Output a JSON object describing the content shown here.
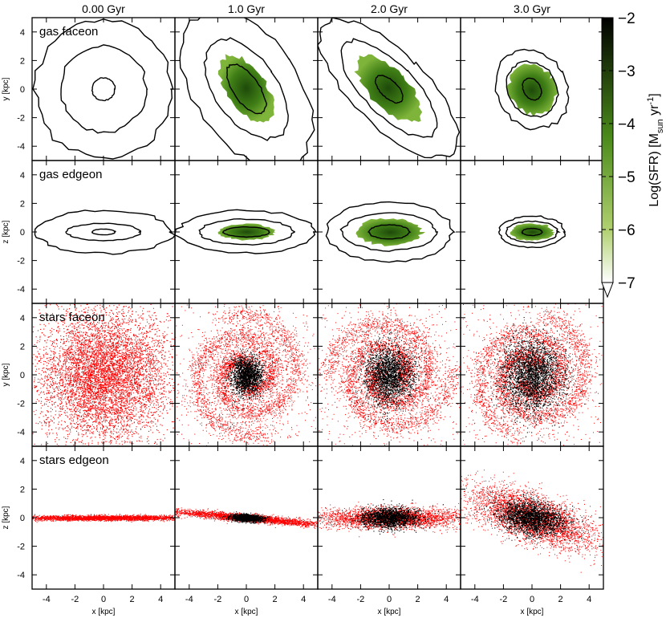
{
  "chart_data": {
    "type": "image-grid",
    "title": "",
    "time_labels": [
      "0.00 Gyr",
      "1.0 Gyr",
      "2.0 Gyr",
      "3.0 Gyr"
    ],
    "row_labels": [
      "gas faceon",
      "gas edgeon",
      "stars faceon",
      "stars edgeon"
    ],
    "ylabels": [
      "y [kpc]",
      "z [kpc]",
      "y [kpc]",
      "z [kpc]"
    ],
    "xlabel": "x [kpc]",
    "x_ticks": [
      -4,
      -2,
      0,
      2,
      4
    ],
    "y_ticks": [
      -4,
      -2,
      0,
      2,
      4
    ],
    "xlim": [
      -5,
      5
    ],
    "ylim": [
      -5,
      5
    ],
    "colorbar": {
      "label": "Log(SFR) [M",
      "label_sub": "sun",
      "label_mid": " yr",
      "label_sup": "-1",
      "label_end": "]",
      "ticks": [
        -2,
        -3,
        -4,
        -5,
        -6,
        -7
      ],
      "range": [
        -7,
        -2
      ],
      "color_high": "#000000",
      "color_mid": "#4a8a1a",
      "color_low": "#ffffff"
    },
    "star_colors": {
      "old": "#ff0000",
      "new": "#000000"
    },
    "panels": {
      "gas_faceon": [
        {
          "time": "0.00 Gyr",
          "sfr_rx": 0,
          "sfr_ry": 0,
          "angle": 0,
          "contours": [
            [
              0.8,
              0.8
            ],
            [
              3.0,
              3.0
            ],
            [
              4.8,
              4.8
            ]
          ]
        },
        {
          "time": "1.0 Gyr",
          "sfr_rx": 1.4,
          "sfr_ry": 2.7,
          "angle": 35,
          "contours": [
            [
              0.9,
              2.0
            ],
            [
              2.2,
              4.0
            ],
            [
              3.6,
              6.2
            ]
          ]
        },
        {
          "time": "2.0 Gyr",
          "sfr_rx": 1.3,
          "sfr_ry": 3.0,
          "angle": 45,
          "contours": [
            [
              0.6,
              1.2
            ],
            [
              1.8,
              4.4
            ],
            [
              2.6,
              6.3
            ]
          ]
        },
        {
          "time": "3.0 Gyr",
          "sfr_rx": 1.6,
          "sfr_ry": 1.8,
          "angle": 30,
          "contours": [
            [
              0.6,
              0.8
            ],
            [
              1.7,
              2.0
            ],
            [
              2.4,
              2.9
            ]
          ]
        }
      ],
      "gas_edgeon": [
        {
          "time": "0.00 Gyr",
          "sfr_rx": 0,
          "sfr_ry": 0,
          "contours": [
            [
              0.8,
              0.2
            ],
            [
              2.6,
              0.6
            ],
            [
              4.8,
              1.5
            ]
          ]
        },
        {
          "time": "1.0 Gyr",
          "sfr_rx": 2.0,
          "sfr_ry": 0.55,
          "contours": [
            [
              1.6,
              0.35
            ],
            [
              3.3,
              0.9
            ],
            [
              4.8,
              1.5
            ]
          ]
        },
        {
          "time": "2.0 Gyr",
          "sfr_rx": 2.3,
          "sfr_ry": 0.95,
          "contours": [
            [
              1.4,
              0.5
            ],
            [
              3.3,
              1.3
            ],
            [
              4.4,
              2.1
            ]
          ]
        },
        {
          "time": "3.0 Gyr",
          "sfr_rx": 1.5,
          "sfr_ry": 0.6,
          "contours": [
            [
              0.7,
              0.25
            ],
            [
              1.8,
              0.75
            ],
            [
              2.3,
              1.1
            ]
          ]
        }
      ]
    }
  }
}
